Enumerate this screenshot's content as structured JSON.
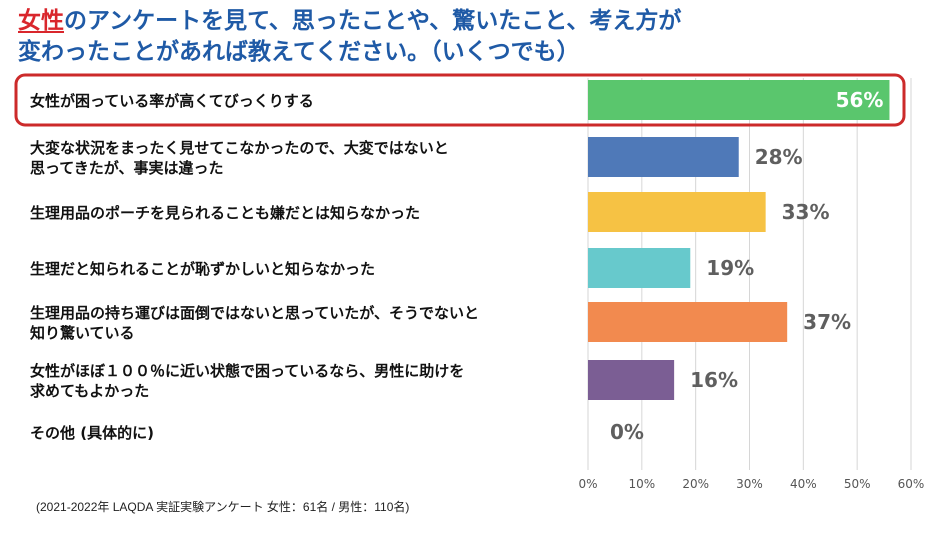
{
  "title": {
    "highlight": "女性",
    "line1_rest": "のアンケートを見て、思ったことや、驚いたこと、考え方が",
    "line2": "変わったことがあれば教えてください。（いくつでも）"
  },
  "footer": "(2021-2022年 LAQDA 実証実験アンケート 女性：61名 / 男性：110名)",
  "colors": {
    "title": "#1f5aa6",
    "highlight": "#d9262c",
    "grid": "#d6d6d6",
    "value_text": "#5f5f5f",
    "tick_text": "#555555"
  },
  "chart_data": {
    "type": "bar",
    "orientation": "horizontal",
    "categories": [
      [
        "女性が困っている率が高くてびっくりする"
      ],
      [
        "大変な状況をまったく見せてこなかったので、大変ではないと",
        "思ってきたが、事実は違った"
      ],
      [
        "生理用品のポーチを見られることも嫌だとは知らなかった"
      ],
      [
        "生理だと知られることが恥ずかしいと知らなかった"
      ],
      [
        "生理用品の持ち運びは面倒ではないと思っていたが、そうでないと",
        "知り驚いている"
      ],
      [
        "女性がほぼ１００％に近い状態で困っているなら、男性に助けを",
        "求めてもよかった"
      ],
      [
        "その他 (具体的に)"
      ]
    ],
    "values": [
      56,
      28,
      33,
      19,
      37,
      16,
      0
    ],
    "value_labels": [
      "56%",
      "28%",
      "33%",
      "19%",
      "37%",
      "16%",
      "0%"
    ],
    "bar_colors": [
      "#5ac66d",
      "#4f79b8",
      "#f6c244",
      "#67c9cc",
      "#f28a4f",
      "#7b5e94",
      "#cccccc"
    ],
    "highlighted_index": 0,
    "highlight_color": "#cc2a2a",
    "xlim": [
      0,
      60
    ],
    "xticks": [
      0,
      10,
      20,
      30,
      40,
      50,
      60
    ],
    "xtick_labels": [
      "0%",
      "10%",
      "20%",
      "30%",
      "40%",
      "50%",
      "60%"
    ],
    "grid": true
  }
}
